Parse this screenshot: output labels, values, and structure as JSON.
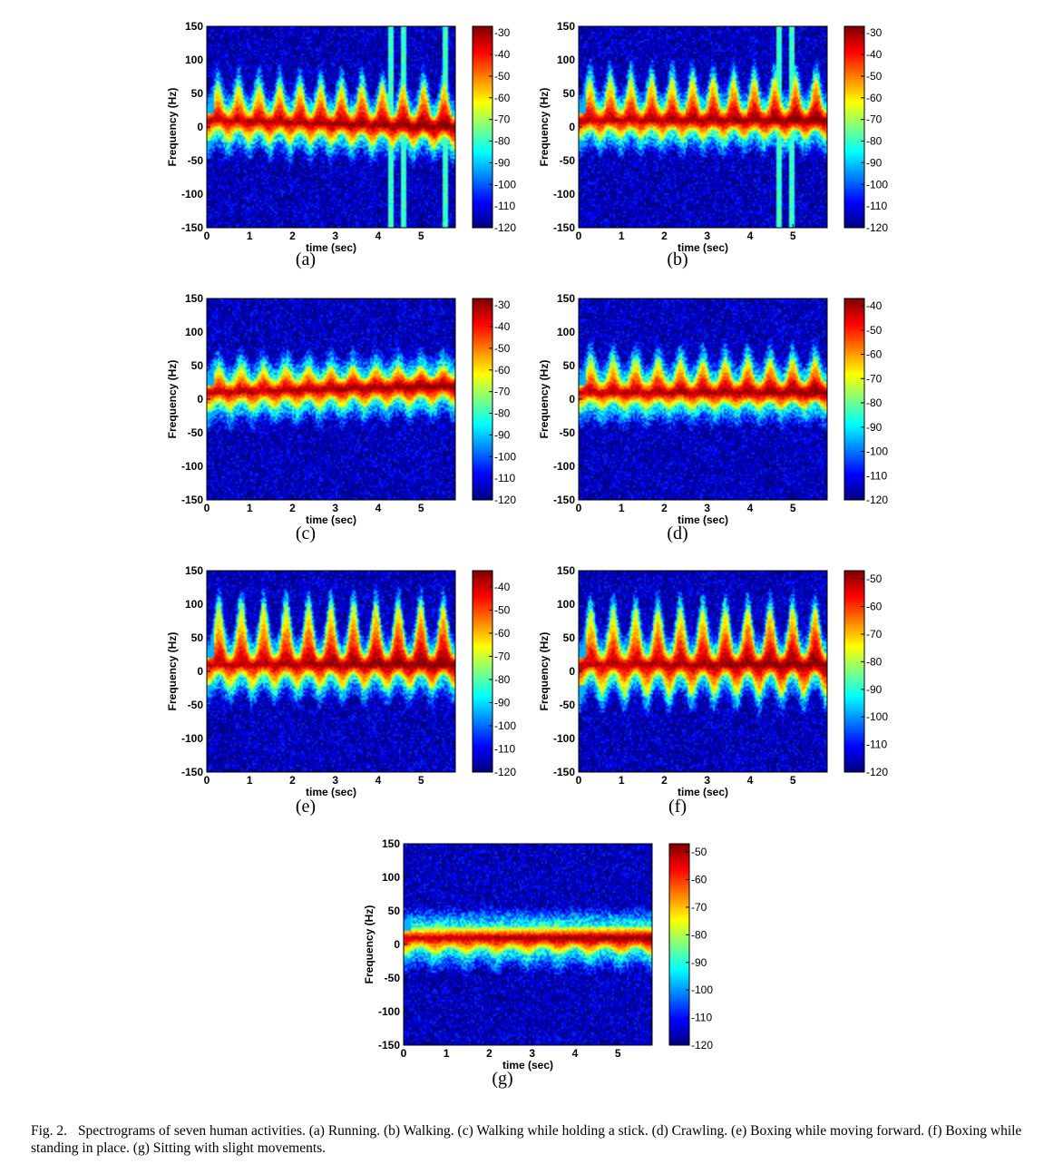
{
  "figure": {
    "caption_label": "Fig. 2.",
    "caption_text": "Spectrograms of seven human activities. (a) Running. (b) Walking. (c) Walking while holding a stick. (d) Crawling. (e) Boxing while moving forward. (f) Boxing while standing in place. (g) Sitting with slight movements."
  },
  "colors": {
    "colormap": "jet"
  },
  "chart_data": [
    {
      "type": "heatmap",
      "panel_label": "(a)",
      "xlabel": "time (sec)",
      "ylabel": "Frequency (Hz)",
      "xlim": [
        0,
        5.8
      ],
      "ylim": [
        -150,
        150
      ],
      "xticks": [
        0,
        1,
        2,
        3,
        4,
        5
      ],
      "yticks": [
        150,
        100,
        50,
        0,
        -50,
        -100,
        -150
      ],
      "colorbar": {
        "ticks": [
          -30,
          -40,
          -50,
          -60,
          -70,
          -80,
          -90,
          -100,
          -110,
          -120
        ],
        "range": [
          -120,
          -27
        ]
      },
      "pattern": {
        "cycles": 12,
        "peak_hz": 65,
        "trough_hz": -40,
        "drift_hz_end": -10,
        "stripes_sec": [
          4.3,
          4.6,
          5.6
        ]
      }
    },
    {
      "type": "heatmap",
      "panel_label": "(b)",
      "xlabel": "time (sec)",
      "ylabel": "Frequency (Hz)",
      "xlim": [
        0,
        5.8
      ],
      "ylim": [
        -150,
        150
      ],
      "xticks": [
        0,
        1,
        2,
        3,
        4,
        5
      ],
      "yticks": [
        150,
        100,
        50,
        0,
        -50,
        -100,
        -150
      ],
      "colorbar": {
        "ticks": [
          -30,
          -40,
          -50,
          -60,
          -70,
          -80,
          -90,
          -100,
          -110,
          -120
        ],
        "range": [
          -120,
          -27
        ]
      },
      "pattern": {
        "cycles": 12,
        "peak_hz": 75,
        "trough_hz": -35,
        "drift_hz_end": 0,
        "stripes_sec": [
          4.7,
          5.0
        ]
      }
    },
    {
      "type": "heatmap",
      "panel_label": "(c)",
      "xlabel": "time (sec)",
      "ylabel": "Frequency (Hz)",
      "xlim": [
        0,
        5.8
      ],
      "ylim": [
        -150,
        150
      ],
      "xticks": [
        0,
        1,
        2,
        3,
        4,
        5
      ],
      "yticks": [
        150,
        100,
        50,
        0,
        -50,
        -100,
        -150
      ],
      "colorbar": {
        "ticks": [
          -30,
          -40,
          -50,
          -60,
          -70,
          -80,
          -90,
          -100,
          -110,
          -120
        ],
        "range": [
          -120,
          -27
        ]
      },
      "pattern": {
        "cycles": 11,
        "peak_hz": 50,
        "trough_hz": -35,
        "drift_hz_end": 10,
        "stripes_sec": []
      }
    },
    {
      "type": "heatmap",
      "panel_label": "(d)",
      "xlabel": "time (sec)",
      "ylabel": "Frequency (Hz)",
      "xlim": [
        0,
        5.8
      ],
      "ylim": [
        -150,
        150
      ],
      "xticks": [
        0,
        1,
        2,
        3,
        4,
        5
      ],
      "yticks": [
        150,
        100,
        50,
        0,
        -50,
        -100,
        -150
      ],
      "colorbar": {
        "ticks": [
          -40,
          -50,
          -60,
          -70,
          -80,
          -90,
          -100,
          -110,
          -120
        ],
        "range": [
          -120,
          -37
        ]
      },
      "pattern": {
        "cycles": 11,
        "peak_hz": 60,
        "trough_hz": -30,
        "drift_hz_end": 0,
        "stripes_sec": []
      }
    },
    {
      "type": "heatmap",
      "panel_label": "(e)",
      "xlabel": "time (sec)",
      "ylabel": "Frequency (Hz)",
      "xlim": [
        0,
        5.8
      ],
      "ylim": [
        -150,
        150
      ],
      "xticks": [
        0,
        1,
        2,
        3,
        4,
        5
      ],
      "yticks": [
        150,
        100,
        50,
        0,
        -50,
        -100,
        -150
      ],
      "colorbar": {
        "ticks": [
          -40,
          -50,
          -60,
          -70,
          -80,
          -90,
          -100,
          -110,
          -120
        ],
        "range": [
          -120,
          -33
        ]
      },
      "pattern": {
        "cycles": 11,
        "peak_hz": 100,
        "trough_hz": -45,
        "drift_hz_end": 0,
        "stripes_sec": []
      }
    },
    {
      "type": "heatmap",
      "panel_label": "(f)",
      "xlabel": "time (sec)",
      "ylabel": "Frequency (Hz)",
      "xlim": [
        0,
        5.8
      ],
      "ylim": [
        -150,
        150
      ],
      "xticks": [
        0,
        1,
        2,
        3,
        4,
        5
      ],
      "yticks": [
        150,
        100,
        50,
        0,
        -50,
        -100,
        -150
      ],
      "colorbar": {
        "ticks": [
          -50,
          -60,
          -70,
          -80,
          -90,
          -100,
          -110,
          -120
        ],
        "range": [
          -120,
          -47
        ]
      },
      "pattern": {
        "cycles": 11,
        "peak_hz": 95,
        "trough_hz": -60,
        "drift_hz_end": 0,
        "stripes_sec": []
      }
    },
    {
      "type": "heatmap",
      "panel_label": "(g)",
      "xlabel": "time (sec)",
      "ylabel": "Frequency (Hz)",
      "xlim": [
        0,
        5.8
      ],
      "ylim": [
        -150,
        150
      ],
      "xticks": [
        0,
        1,
        2,
        3,
        4,
        5
      ],
      "yticks": [
        150,
        100,
        50,
        0,
        -50,
        -100,
        -150
      ],
      "colorbar": {
        "ticks": [
          -50,
          -60,
          -70,
          -80,
          -90,
          -100,
          -110,
          -120
        ],
        "range": [
          -120,
          -47
        ]
      },
      "pattern": {
        "cycles": 8,
        "peak_hz": 25,
        "trough_hz": -30,
        "drift_hz_end": 0,
        "stripes_sec": []
      }
    }
  ]
}
